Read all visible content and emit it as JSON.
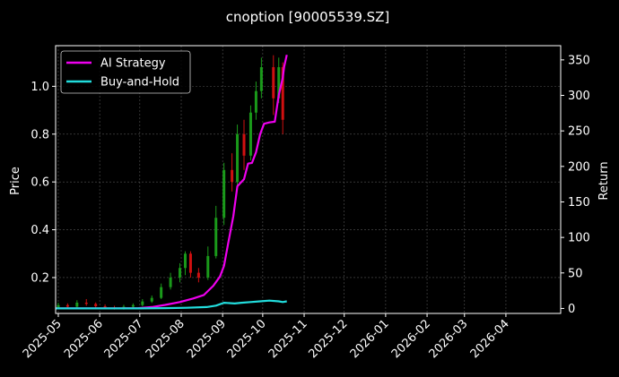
{
  "chart_data": {
    "type": "line",
    "title": "cnoption [90005539.SZ]",
    "ylabel": "Price",
    "y2label": "Return",
    "xlim": [
      "2025-04-29",
      "2026-05-12"
    ],
    "ylim": [
      0.05,
      1.17
    ],
    "y2lim": [
      -7,
      370
    ],
    "grid": true,
    "legend_position": "top-left",
    "x_ticks": [
      "2025-05",
      "2025-06",
      "2025-07",
      "2025-08",
      "2025-09",
      "2025-10",
      "2025-11",
      "2025-12",
      "2026-01",
      "2026-02",
      "2026-03",
      "2026-04"
    ],
    "x_tick_dates": [
      "2025-05-01",
      "2025-06-01",
      "2025-07-01",
      "2025-08-01",
      "2025-09-01",
      "2025-10-01",
      "2025-11-01",
      "2025-12-01",
      "2026-01-01",
      "2026-02-01",
      "2026-03-01",
      "2026-04-01"
    ],
    "y_ticks": [
      "0.2",
      "0.4",
      "0.6",
      "0.8",
      "1.0"
    ],
    "y_tick_values": [
      0.2,
      0.4,
      0.6,
      0.8,
      1.0
    ],
    "y2_ticks": [
      "0",
      "50",
      "100",
      "150",
      "200",
      "250",
      "300",
      "350"
    ],
    "y2_tick_values": [
      0,
      50,
      100,
      150,
      200,
      250,
      300,
      350
    ],
    "colors": {
      "ai": "#ee00ee",
      "bh": "#22dddd",
      "up": "#1a9a1a",
      "down": "#d01010",
      "grid": "#555555"
    },
    "price": [
      {
        "date": "2025-05-01",
        "open": 0.075,
        "close": 0.085,
        "high": 0.095,
        "low": 0.068
      },
      {
        "date": "2025-05-08",
        "open": 0.085,
        "close": 0.078,
        "high": 0.092,
        "low": 0.072
      },
      {
        "date": "2025-05-15",
        "open": 0.078,
        "close": 0.095,
        "high": 0.105,
        "low": 0.074
      },
      {
        "date": "2025-05-22",
        "open": 0.095,
        "close": 0.09,
        "high": 0.11,
        "low": 0.082
      },
      {
        "date": "2025-05-29",
        "open": 0.09,
        "close": 0.08,
        "high": 0.096,
        "low": 0.072
      },
      {
        "date": "2025-06-05",
        "open": 0.08,
        "close": 0.075,
        "high": 0.088,
        "low": 0.07
      },
      {
        "date": "2025-06-12",
        "open": 0.075,
        "close": 0.072,
        "high": 0.082,
        "low": 0.066
      },
      {
        "date": "2025-06-19",
        "open": 0.072,
        "close": 0.078,
        "high": 0.086,
        "low": 0.066
      },
      {
        "date": "2025-06-26",
        "open": 0.078,
        "close": 0.085,
        "high": 0.092,
        "low": 0.072
      },
      {
        "date": "2025-07-03",
        "open": 0.085,
        "close": 0.1,
        "high": 0.11,
        "low": 0.08
      },
      {
        "date": "2025-07-10",
        "open": 0.1,
        "close": 0.115,
        "high": 0.125,
        "low": 0.094
      },
      {
        "date": "2025-07-17",
        "open": 0.115,
        "close": 0.16,
        "high": 0.175,
        "low": 0.11
      },
      {
        "date": "2025-07-24",
        "open": 0.16,
        "close": 0.2,
        "high": 0.22,
        "low": 0.15
      },
      {
        "date": "2025-07-31",
        "open": 0.2,
        "close": 0.24,
        "high": 0.26,
        "low": 0.18
      },
      {
        "date": "2025-08-04",
        "open": 0.24,
        "close": 0.3,
        "high": 0.31,
        "low": 0.21
      },
      {
        "date": "2025-08-08",
        "open": 0.3,
        "close": 0.22,
        "high": 0.31,
        "low": 0.2
      },
      {
        "date": "2025-08-14",
        "open": 0.22,
        "close": 0.2,
        "high": 0.24,
        "low": 0.18
      },
      {
        "date": "2025-08-21",
        "open": 0.2,
        "close": 0.29,
        "high": 0.33,
        "low": 0.19
      },
      {
        "date": "2025-08-27",
        "open": 0.29,
        "close": 0.45,
        "high": 0.5,
        "low": 0.28
      },
      {
        "date": "2025-09-02",
        "open": 0.45,
        "close": 0.65,
        "high": 0.68,
        "low": 0.42
      },
      {
        "date": "2025-09-08",
        "open": 0.65,
        "close": 0.6,
        "high": 0.72,
        "low": 0.56
      },
      {
        "date": "2025-09-12",
        "open": 0.6,
        "close": 0.8,
        "high": 0.84,
        "low": 0.58
      },
      {
        "date": "2025-09-17",
        "open": 0.8,
        "close": 0.71,
        "high": 0.86,
        "low": 0.65
      },
      {
        "date": "2025-09-22",
        "open": 0.71,
        "close": 0.89,
        "high": 0.92,
        "low": 0.69
      },
      {
        "date": "2025-09-26",
        "open": 0.89,
        "close": 0.98,
        "high": 1.02,
        "low": 0.86
      },
      {
        "date": "2025-09-30",
        "open": 0.98,
        "close": 1.08,
        "high": 1.12,
        "low": 0.95
      },
      {
        "date": "2025-10-09",
        "open": 1.08,
        "close": 0.95,
        "high": 1.13,
        "low": 0.88
      },
      {
        "date": "2025-10-13",
        "open": 0.95,
        "close": 1.08,
        "high": 1.12,
        "low": 0.93
      },
      {
        "date": "2025-10-16",
        "open": 1.08,
        "close": 0.86,
        "high": 1.1,
        "low": 0.8
      }
    ],
    "series": [
      {
        "name": "AI Strategy",
        "points": [
          [
            "2025-04-29",
            0
          ],
          [
            "2025-05-15",
            0
          ],
          [
            "2025-06-01",
            0
          ],
          [
            "2025-06-15",
            0
          ],
          [
            "2025-06-30",
            0.5
          ],
          [
            "2025-07-10",
            2
          ],
          [
            "2025-07-20",
            5
          ],
          [
            "2025-07-31",
            9
          ],
          [
            "2025-08-10",
            14
          ],
          [
            "2025-08-18",
            19
          ],
          [
            "2025-08-25",
            32
          ],
          [
            "2025-08-30",
            45
          ],
          [
            "2025-09-02",
            60
          ],
          [
            "2025-09-05",
            90
          ],
          [
            "2025-09-09",
            130
          ],
          [
            "2025-09-12",
            172
          ],
          [
            "2025-09-17",
            182
          ],
          [
            "2025-09-20",
            204
          ],
          [
            "2025-09-23",
            205
          ],
          [
            "2025-09-26",
            220
          ],
          [
            "2025-09-29",
            245
          ],
          [
            "2025-10-02",
            260
          ],
          [
            "2025-10-06",
            262
          ],
          [
            "2025-10-10",
            263
          ],
          [
            "2025-10-13",
            300
          ],
          [
            "2025-10-16",
            325
          ],
          [
            "2025-10-17",
            340
          ],
          [
            "2025-10-19",
            357
          ]
        ]
      },
      {
        "name": "Buy-and-Hold",
        "points": [
          [
            "2025-04-29",
            0
          ],
          [
            "2025-05-20",
            0
          ],
          [
            "2025-06-15",
            0
          ],
          [
            "2025-07-01",
            0
          ],
          [
            "2025-07-20",
            0.5
          ],
          [
            "2025-08-05",
            1
          ],
          [
            "2025-08-20",
            2
          ],
          [
            "2025-08-27",
            4
          ],
          [
            "2025-09-02",
            8
          ],
          [
            "2025-09-10",
            7
          ],
          [
            "2025-09-15",
            8
          ],
          [
            "2025-09-22",
            9
          ],
          [
            "2025-09-29",
            10
          ],
          [
            "2025-10-06",
            11
          ],
          [
            "2025-10-13",
            10
          ],
          [
            "2025-10-16",
            9
          ],
          [
            "2025-10-19",
            10
          ]
        ]
      }
    ]
  }
}
